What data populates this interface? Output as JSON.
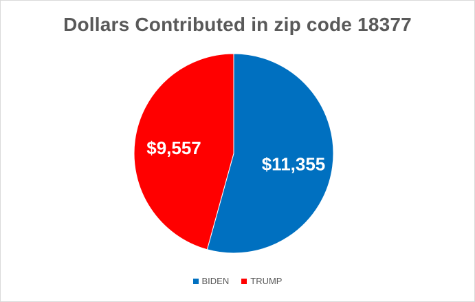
{
  "chart_data": {
    "type": "pie",
    "title": "Dollars Contributed in zip code 18377",
    "categories": [
      "BIDEN",
      "TRUMP"
    ],
    "values": [
      11355,
      9557
    ],
    "data_labels": [
      "$11,355",
      "$9,557"
    ],
    "colors": [
      "#0070c0",
      "#ff0000"
    ],
    "legend_position": "bottom"
  }
}
